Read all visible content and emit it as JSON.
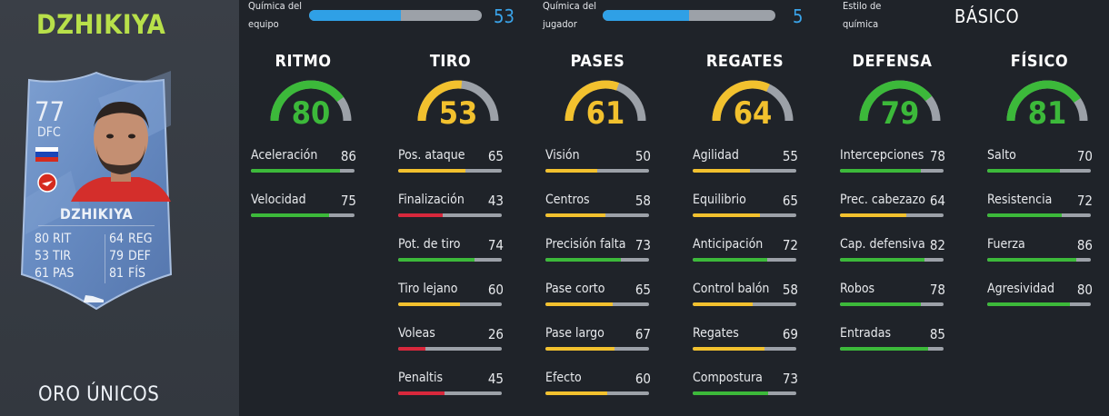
{
  "player": {
    "name": "DZHIKIYA",
    "card_type": "ORO ÚNICOS",
    "rating": "77",
    "position": "DFC",
    "card_name": "DZHIKIYA",
    "card_stats": [
      {
        "value": "80",
        "label": "RIT",
        "value2": "64",
        "label2": "REG"
      },
      {
        "value": "53",
        "label": "TIR",
        "value2": "79",
        "label2": "DEF"
      },
      {
        "value": "61",
        "label": "PAS",
        "value2": "81",
        "label2": "FÍS"
      }
    ],
    "icons": {
      "flag": "russia-flag-icon",
      "club": "spartak-club-icon",
      "photo": "player-photo",
      "boot": "boot-icon"
    }
  },
  "chemistry": {
    "team_label_1": "Química del",
    "team_label_2": "equipo",
    "team_value": "53",
    "team_fraction": 0.53,
    "player_label_1": "Química del",
    "player_label_2": "jugador",
    "player_value": "5",
    "player_fraction": 0.5,
    "style_label_1": "Estilo de",
    "style_label_2": "química",
    "style_value": "BÁSICO"
  },
  "colors": {
    "green": "#3cb93a",
    "yellow": "#f2c12e",
    "red": "#d8283c",
    "grey": "#9ca1a8",
    "blue": "#2fa0e6",
    "title_green": "#b8e04a"
  },
  "categories": [
    {
      "name": "RITMO",
      "value": "80",
      "attrs": [
        {
          "name": "Aceleración",
          "value": "86"
        },
        {
          "name": "Velocidad",
          "value": "75"
        }
      ]
    },
    {
      "name": "TIRO",
      "value": "53",
      "attrs": [
        {
          "name": "Pos. ataque",
          "value": "65"
        },
        {
          "name": "Finalización",
          "value": "43"
        },
        {
          "name": "Pot. de tiro",
          "value": "74"
        },
        {
          "name": "Tiro lejano",
          "value": "60"
        },
        {
          "name": "Voleas",
          "value": "26"
        },
        {
          "name": "Penaltis",
          "value": "45"
        }
      ]
    },
    {
      "name": "PASES",
      "value": "61",
      "attrs": [
        {
          "name": "Visión",
          "value": "50"
        },
        {
          "name": "Centros",
          "value": "58"
        },
        {
          "name": "Precisión falta",
          "value": "73"
        },
        {
          "name": "Pase corto",
          "value": "65"
        },
        {
          "name": "Pase largo",
          "value": "67"
        },
        {
          "name": "Efecto",
          "value": "60"
        }
      ]
    },
    {
      "name": "REGATES",
      "value": "64",
      "attrs": [
        {
          "name": "Agilidad",
          "value": "55"
        },
        {
          "name": "Equilibrio",
          "value": "65"
        },
        {
          "name": "Anticipación",
          "value": "72"
        },
        {
          "name": "Control balón",
          "value": "58"
        },
        {
          "name": "Regates",
          "value": "69"
        },
        {
          "name": "Compostura",
          "value": "73"
        }
      ]
    },
    {
      "name": "DEFENSA",
      "value": "79",
      "attrs": [
        {
          "name": "Intercepciones",
          "value": "78"
        },
        {
          "name": "Prec. cabezazo",
          "value": "64"
        },
        {
          "name": "Cap. defensiva",
          "value": "82"
        },
        {
          "name": "Robos",
          "value": "78"
        },
        {
          "name": "Entradas",
          "value": "85"
        }
      ]
    },
    {
      "name": "FÍSICO",
      "value": "81",
      "attrs": [
        {
          "name": "Salto",
          "value": "70"
        },
        {
          "name": "Resistencia",
          "value": "72"
        },
        {
          "name": "Fuerza",
          "value": "86"
        },
        {
          "name": "Agresividad",
          "value": "80"
        }
      ]
    }
  ]
}
